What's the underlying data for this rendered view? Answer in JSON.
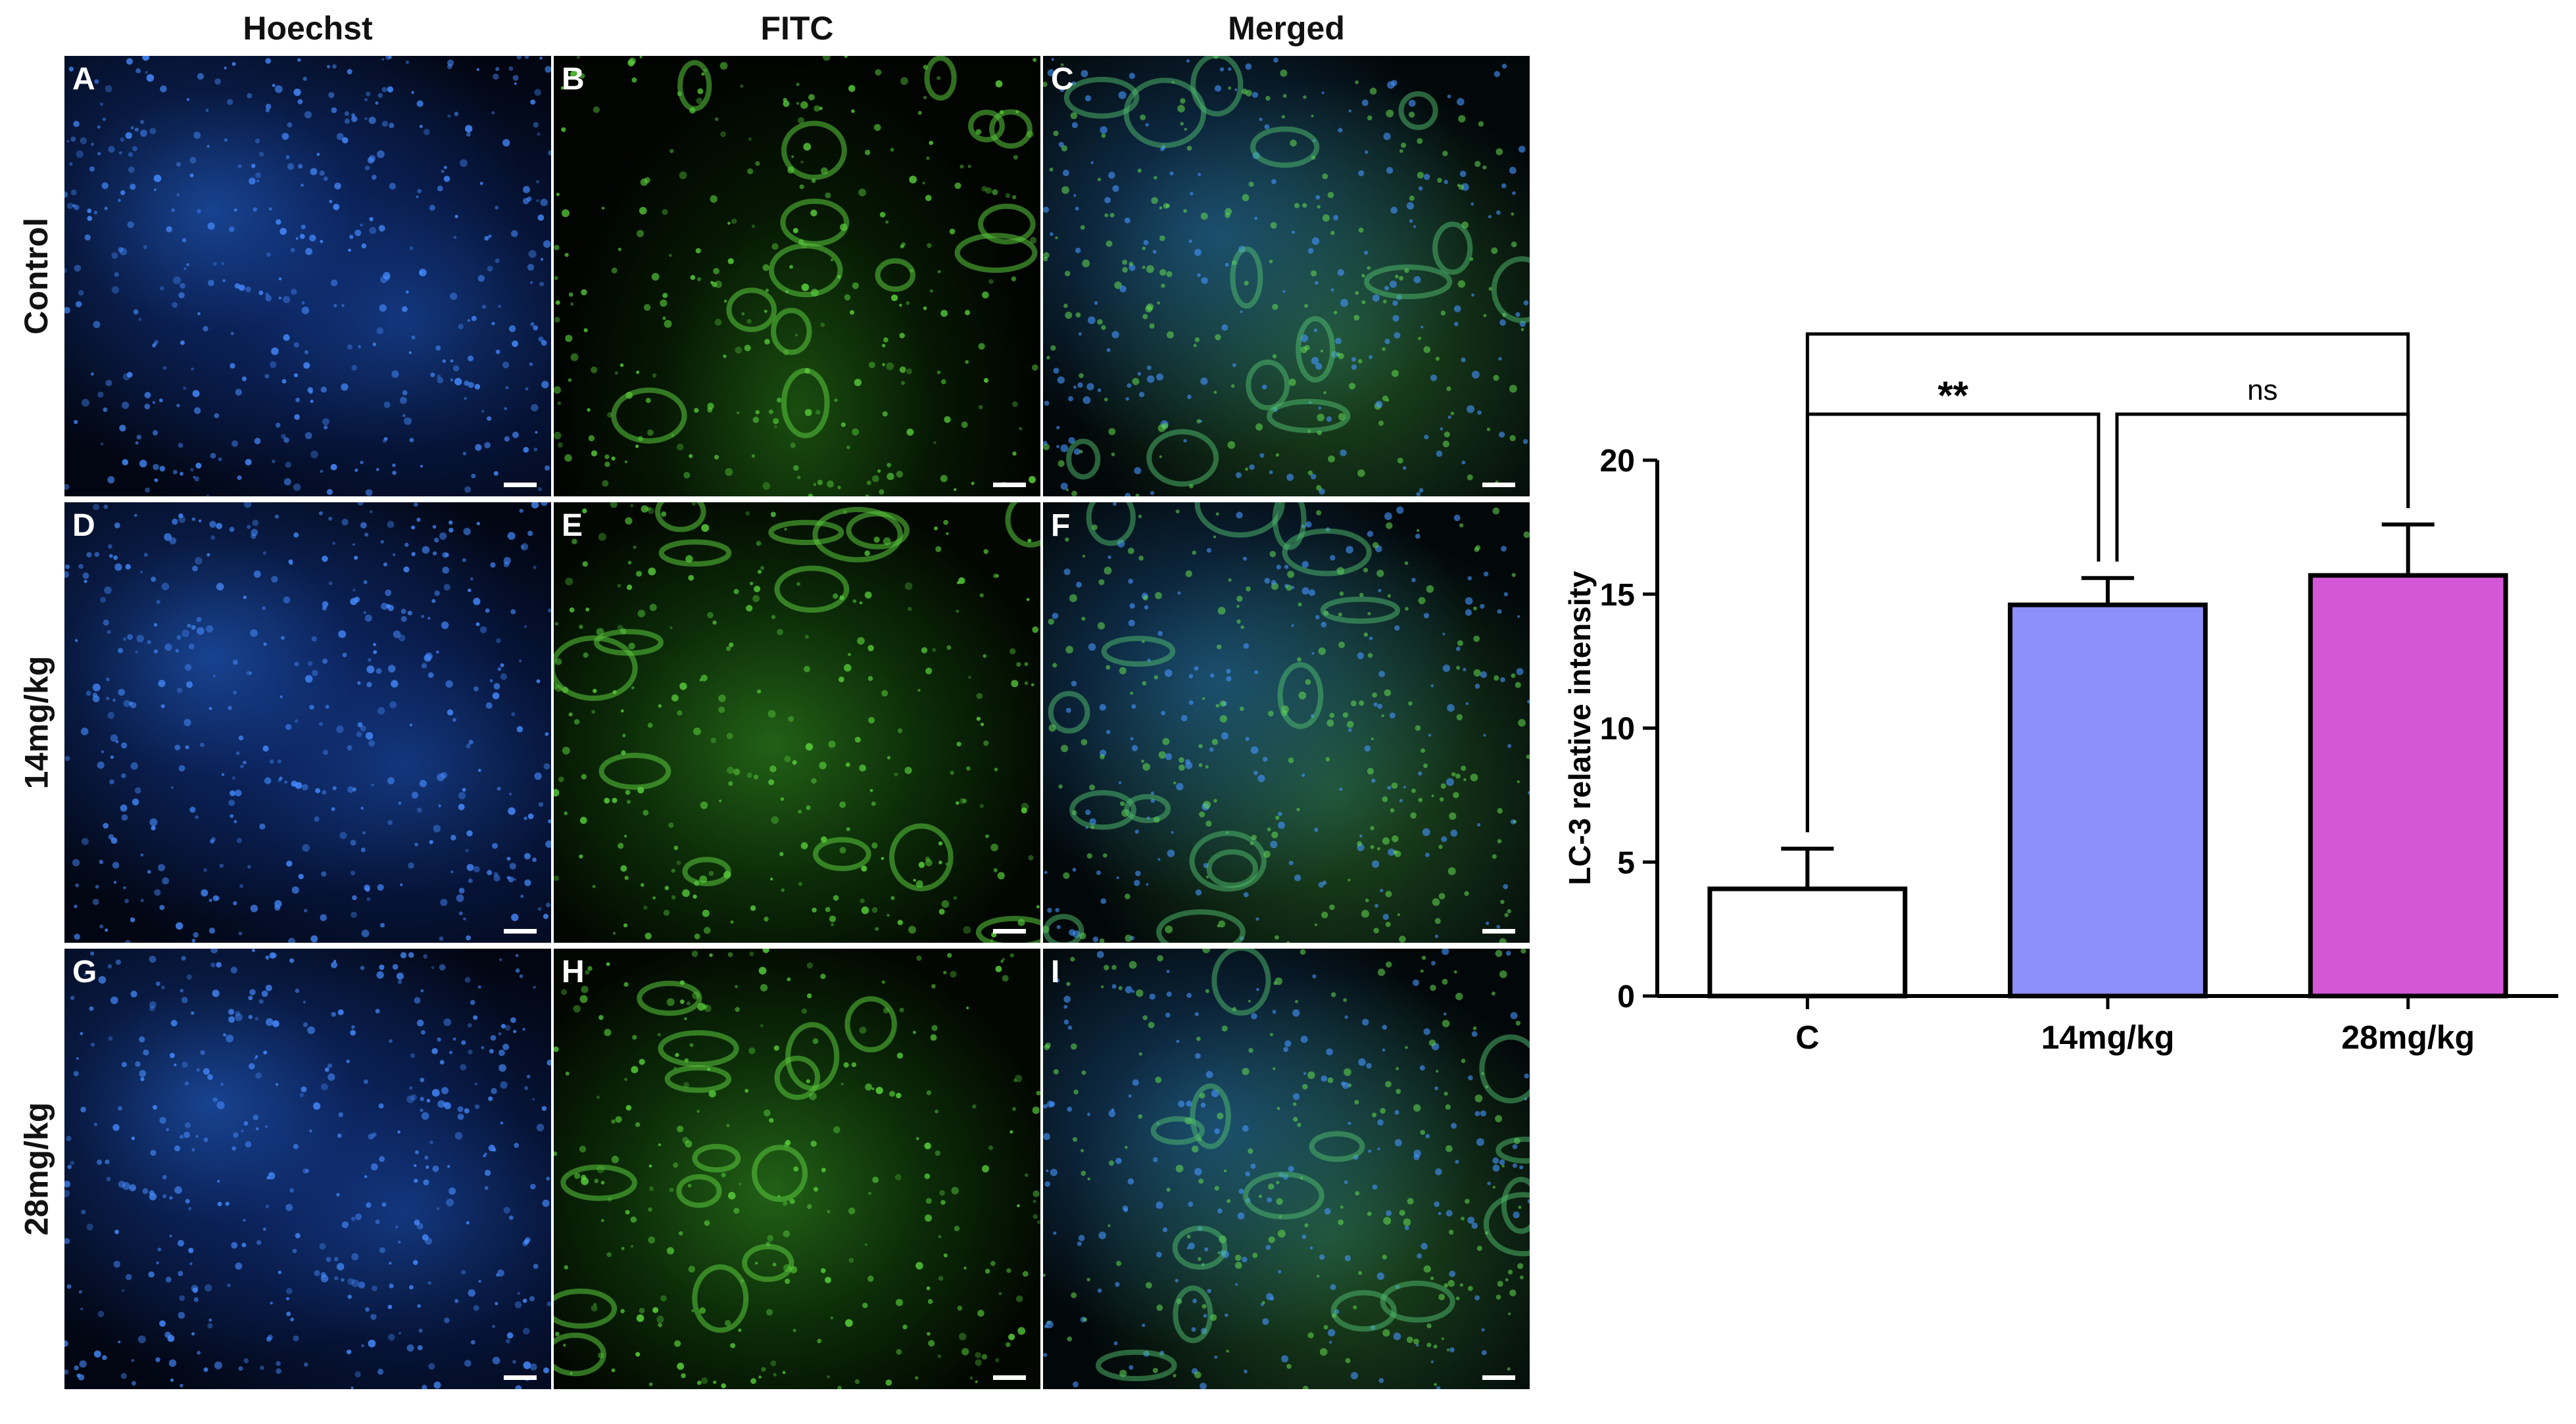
{
  "column_headers": [
    "Hoechst",
    "FITC",
    "Merged"
  ],
  "row_labels": [
    "Control",
    "14mg/kg",
    "28mg/kg"
  ],
  "panel_letters": [
    "A",
    "B",
    "C",
    "D",
    "E",
    "F",
    "G",
    "H",
    "I"
  ],
  "chart_data": {
    "type": "bar",
    "categories": [
      "C",
      "14mg/kg",
      "28mg/kg"
    ],
    "values": [
      4.0,
      14.6,
      15.7
    ],
    "errors": [
      1.5,
      1.0,
      1.9
    ],
    "colors": [
      "#ffffff",
      "#8f8ffa",
      "#d457d8"
    ],
    "edge_color": "#000000",
    "title": "",
    "xlabel": "",
    "ylabel": "LC-3 relative intensity",
    "ylim": [
      0,
      20
    ],
    "yticks": [
      0,
      5,
      10,
      15,
      20
    ],
    "grid": false,
    "significance": [
      {
        "from": "C",
        "to": "28mg/kg",
        "label": "**",
        "level": 2
      },
      {
        "from": "C",
        "to": "14mg/kg",
        "label": "**",
        "level": 1
      },
      {
        "from": "14mg/kg",
        "to": "28mg/kg",
        "label": "ns",
        "level": 1
      }
    ]
  }
}
